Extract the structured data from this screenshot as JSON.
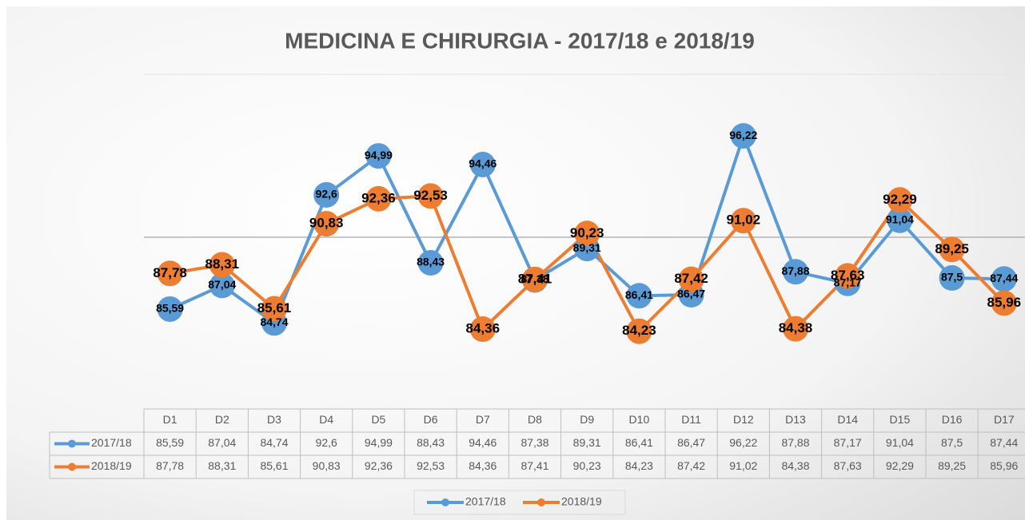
{
  "chart_data": {
    "type": "line",
    "title": "MEDICINA E CHIRURGIA - 2017/18 e 2018/19",
    "categories": [
      "D1",
      "D2",
      "D3",
      "D4",
      "D5",
      "D6",
      "D7",
      "D8",
      "D9",
      "D10",
      "D11",
      "D12",
      "D13",
      "D14",
      "D15",
      "D16",
      "D17"
    ],
    "series": [
      {
        "name": "2017/18",
        "color": "#5b9bd5",
        "values": [
          85.59,
          87.04,
          84.74,
          92.6,
          94.99,
          88.43,
          94.46,
          87.38,
          89.31,
          86.41,
          86.47,
          96.22,
          87.88,
          87.17,
          91.04,
          87.5,
          87.44
        ],
        "value_labels": [
          "85,59",
          "87,04",
          "84,74",
          "92,6",
          "94,99",
          "88,43",
          "94,46",
          "87,38",
          "89,31",
          "86,41",
          "86,47",
          "96,22",
          "87,88",
          "87,17",
          "91,04",
          "87,5",
          "87,44"
        ]
      },
      {
        "name": "2018/19",
        "color": "#ed7d31",
        "values": [
          87.78,
          88.31,
          85.61,
          90.83,
          92.36,
          92.53,
          84.36,
          87.41,
          90.23,
          84.23,
          87.42,
          91.02,
          84.38,
          87.63,
          92.29,
          89.25,
          85.96
        ],
        "value_labels": [
          "87,78",
          "88,31",
          "85,61",
          "90,83",
          "92,36",
          "92,53",
          "84,36",
          "87,41",
          "90,23",
          "84,23",
          "87,42",
          "91,02",
          "84,38",
          "87,63",
          "92,29",
          "89,25",
          "85,96"
        ]
      }
    ],
    "ylim": [
      80,
      100
    ],
    "yticks": [
      90,
      100
    ],
    "grid": true,
    "legend": "bottom"
  }
}
